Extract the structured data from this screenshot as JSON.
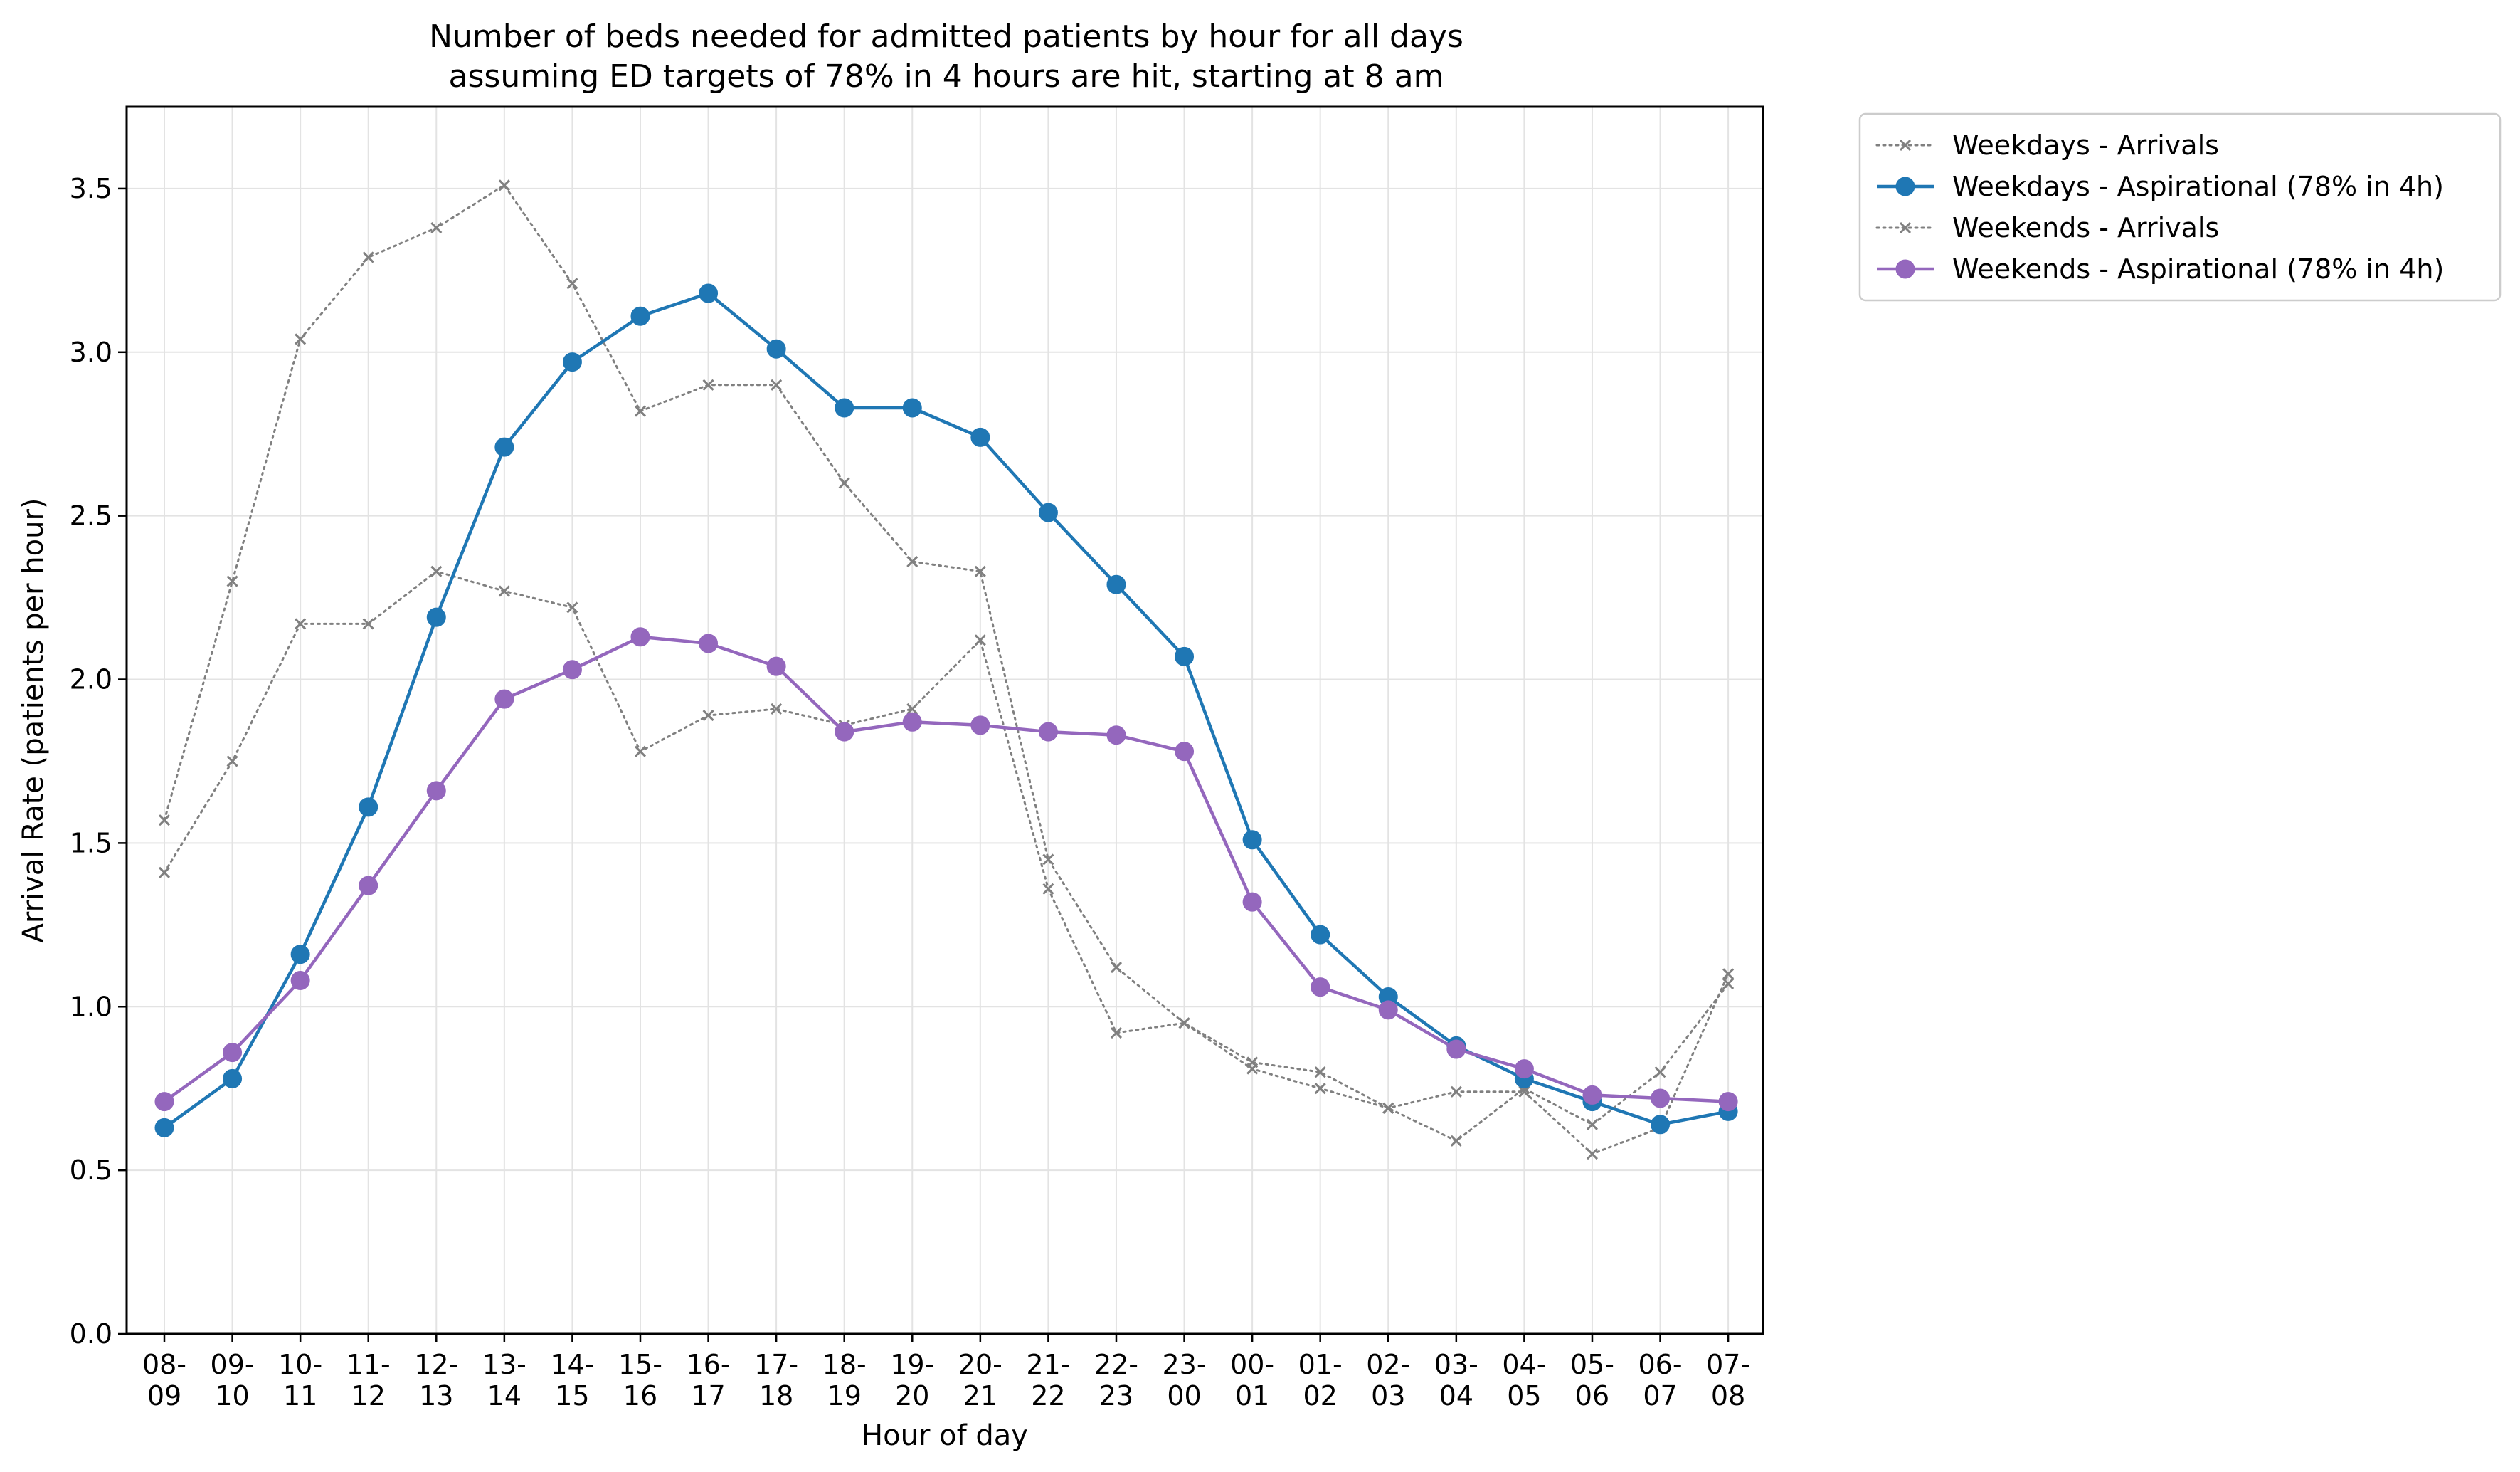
{
  "chart_data": {
    "type": "line",
    "title": "Number of beds needed for admitted patients by hour for all days",
    "subtitle": "assuming ED targets of 78% in 4 hours are hit, starting at 8 am",
    "xlabel": "Hour of day",
    "ylabel": "Arrival Rate (patients per hour)",
    "ylim": [
      0,
      3.75
    ],
    "yticks": [
      "0.0",
      "0.5",
      "1.0",
      "1.5",
      "2.0",
      "2.5",
      "3.0",
      "3.5"
    ],
    "grid": true,
    "legend_position": "outside-top-right",
    "categories": [
      [
        "08-",
        "09"
      ],
      [
        "09-",
        "10"
      ],
      [
        "10-",
        "11"
      ],
      [
        "11-",
        "12"
      ],
      [
        "12-",
        "13"
      ],
      [
        "13-",
        "14"
      ],
      [
        "14-",
        "15"
      ],
      [
        "15-",
        "16"
      ],
      [
        "16-",
        "17"
      ],
      [
        "17-",
        "18"
      ],
      [
        "18-",
        "19"
      ],
      [
        "19-",
        "20"
      ],
      [
        "20-",
        "21"
      ],
      [
        "21-",
        "22"
      ],
      [
        "22-",
        "23"
      ],
      [
        "23-",
        "00"
      ],
      [
        "00-",
        "01"
      ],
      [
        "01-",
        "02"
      ],
      [
        "02-",
        "03"
      ],
      [
        "03-",
        "04"
      ],
      [
        "04-",
        "05"
      ],
      [
        "05-",
        "06"
      ],
      [
        "06-",
        "07"
      ],
      [
        "07-",
        "08"
      ]
    ],
    "series": [
      {
        "name": "Weekdays - Arrivals",
        "style": "dotted-x",
        "color": "#808080",
        "values": [
          1.57,
          2.3,
          3.04,
          3.29,
          3.38,
          3.51,
          3.21,
          2.82,
          2.9,
          2.9,
          2.6,
          2.36,
          2.33,
          1.45,
          1.12,
          0.95,
          0.81,
          0.75,
          0.69,
          0.74,
          0.74,
          0.55,
          0.63,
          1.1
        ]
      },
      {
        "name": "Weekdays - Aspirational (78% in 4h)",
        "style": "solid-circle",
        "color": "#1f77b4",
        "values": [
          0.63,
          0.78,
          1.16,
          1.61,
          2.19,
          2.71,
          2.97,
          3.11,
          3.18,
          3.01,
          2.83,
          2.83,
          2.74,
          2.51,
          2.29,
          2.07,
          1.51,
          1.22,
          1.03,
          0.88,
          0.78,
          0.71,
          0.64,
          0.68
        ]
      },
      {
        "name": "Weekends - Arrivals",
        "style": "dotted-x",
        "color": "#808080",
        "values": [
          1.41,
          1.75,
          2.17,
          2.17,
          2.33,
          2.27,
          2.22,
          1.78,
          1.89,
          1.91,
          1.86,
          1.91,
          2.12,
          1.36,
          0.92,
          0.95,
          0.83,
          0.8,
          0.69,
          0.59,
          0.75,
          0.64,
          0.8,
          1.07
        ]
      },
      {
        "name": "Weekends - Aspirational (78% in 4h)",
        "style": "solid-circle",
        "color": "#9467bd",
        "values": [
          0.71,
          0.86,
          1.08,
          1.37,
          1.66,
          1.94,
          2.03,
          2.13,
          2.11,
          2.04,
          1.84,
          1.87,
          1.86,
          1.84,
          1.83,
          1.78,
          1.32,
          1.06,
          0.99,
          0.87,
          0.81,
          0.73,
          0.72,
          0.71
        ]
      }
    ]
  }
}
